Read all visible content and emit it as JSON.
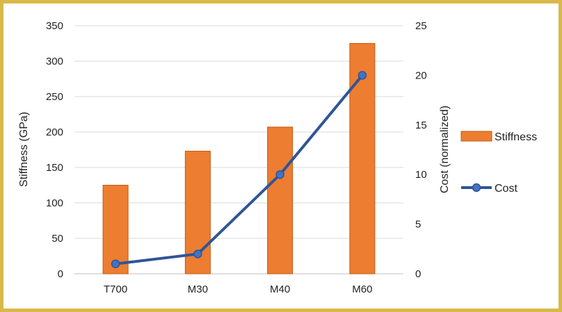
{
  "chart_data": {
    "type": "bar",
    "categories": [
      "T700",
      "M30",
      "M40",
      "M60"
    ],
    "series": [
      {
        "name": "Stiffness",
        "type": "bar",
        "axis": "left",
        "values": [
          125,
          173,
          207,
          325
        ],
        "color": "#ed7d31"
      },
      {
        "name": "Cost",
        "type": "line",
        "axis": "right",
        "values": [
          1,
          2,
          10,
          20
        ],
        "color": "#2f5597"
      }
    ],
    "ylabel": "Stiffness (GPa)",
    "y2label": "Cost (normalized)",
    "ylim": [
      0,
      350
    ],
    "yticks": [
      "0",
      "50",
      "100",
      "150",
      "200",
      "250",
      "300",
      "350"
    ],
    "y2lim": [
      0,
      25
    ],
    "y2ticks": [
      "0",
      "5",
      "10",
      "15",
      "20",
      "25"
    ],
    "grid": true,
    "legend": "right",
    "frame_color": "#d9b94a"
  }
}
